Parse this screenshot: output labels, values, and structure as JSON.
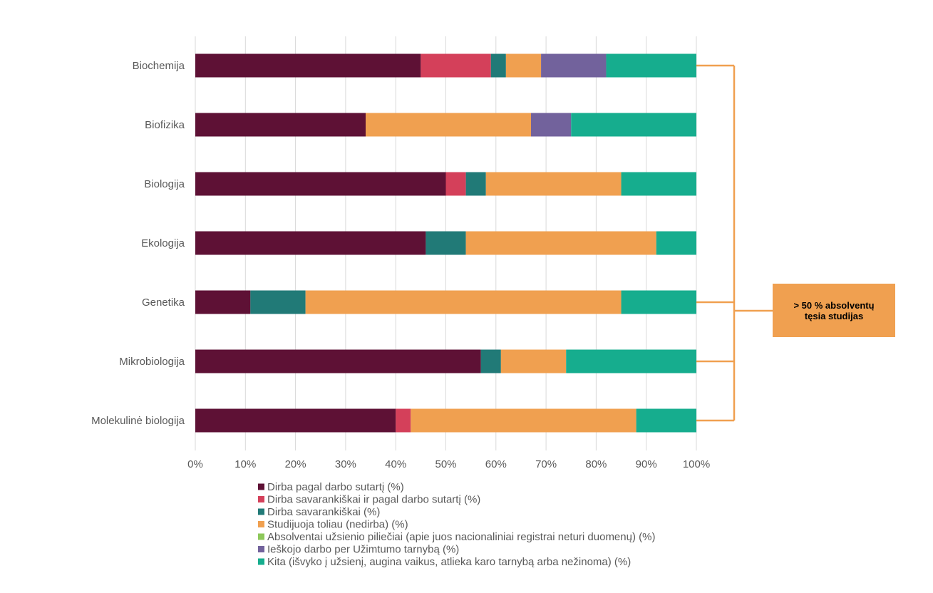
{
  "chart_data": {
    "type": "bar",
    "orientation": "horizontal",
    "stacked": true,
    "categories": [
      "Biochemija",
      "Biofizika",
      "Biologija",
      "Ekologija",
      "Genetika",
      "Mikrobiologija",
      "Molekulinė biologija"
    ],
    "series": [
      {
        "name": "Dirba pagal darbo sutartį (%)",
        "color": "#5e1135",
        "values": [
          45,
          34,
          50,
          46,
          11,
          57,
          40
        ]
      },
      {
        "name": "Dirba savarankiškai ir pagal darbo sutartį (%)",
        "color": "#d4405a",
        "values": [
          14,
          0,
          4,
          0,
          0,
          0,
          3
        ]
      },
      {
        "name": "Dirba savarankiškai (%)",
        "color": "#217a77",
        "values": [
          3,
          0,
          4,
          8,
          11,
          4,
          0
        ]
      },
      {
        "name": "Studijuoja toliau (nedirba) (%)",
        "color": "#f0a050",
        "values": [
          7,
          33,
          27,
          38,
          63,
          13,
          45
        ]
      },
      {
        "name": "Absolventai užsienio piliečiai (apie juos nacionaliniai registrai neturi duomenų) (%)",
        "color": "#8dc85a",
        "values": [
          0,
          0,
          0,
          0,
          0,
          0,
          0
        ]
      },
      {
        "name": "Ieškojo darbo per Užimtumo tarnybą (%)",
        "color": "#72629c",
        "values": [
          13,
          8,
          0,
          0,
          0,
          0,
          0
        ]
      },
      {
        "name": "Kita (išvyko į užsienį, augina vaikus, atlieka karo tarnybą arba nežinoma) (%)",
        "color": "#16ad8e",
        "values": [
          18,
          25,
          15,
          8,
          15,
          26,
          12
        ]
      }
    ],
    "x_ticks": [
      "0%",
      "10%",
      "20%",
      "30%",
      "40%",
      "50%",
      "60%",
      "70%",
      "80%",
      "90%",
      "100%"
    ],
    "xlim": [
      0,
      100
    ],
    "grid": true,
    "legend_position": "bottom",
    "title": "",
    "xlabel": "",
    "ylabel": ""
  },
  "callout": {
    "line1": "> 50 % absolventų",
    "line2": "tęsia studijas",
    "color": "#f0a050",
    "bracket_categories": [
      "Biochemija",
      "Genetika",
      "Mikrobiologija",
      "Molekulinė biologija"
    ]
  }
}
